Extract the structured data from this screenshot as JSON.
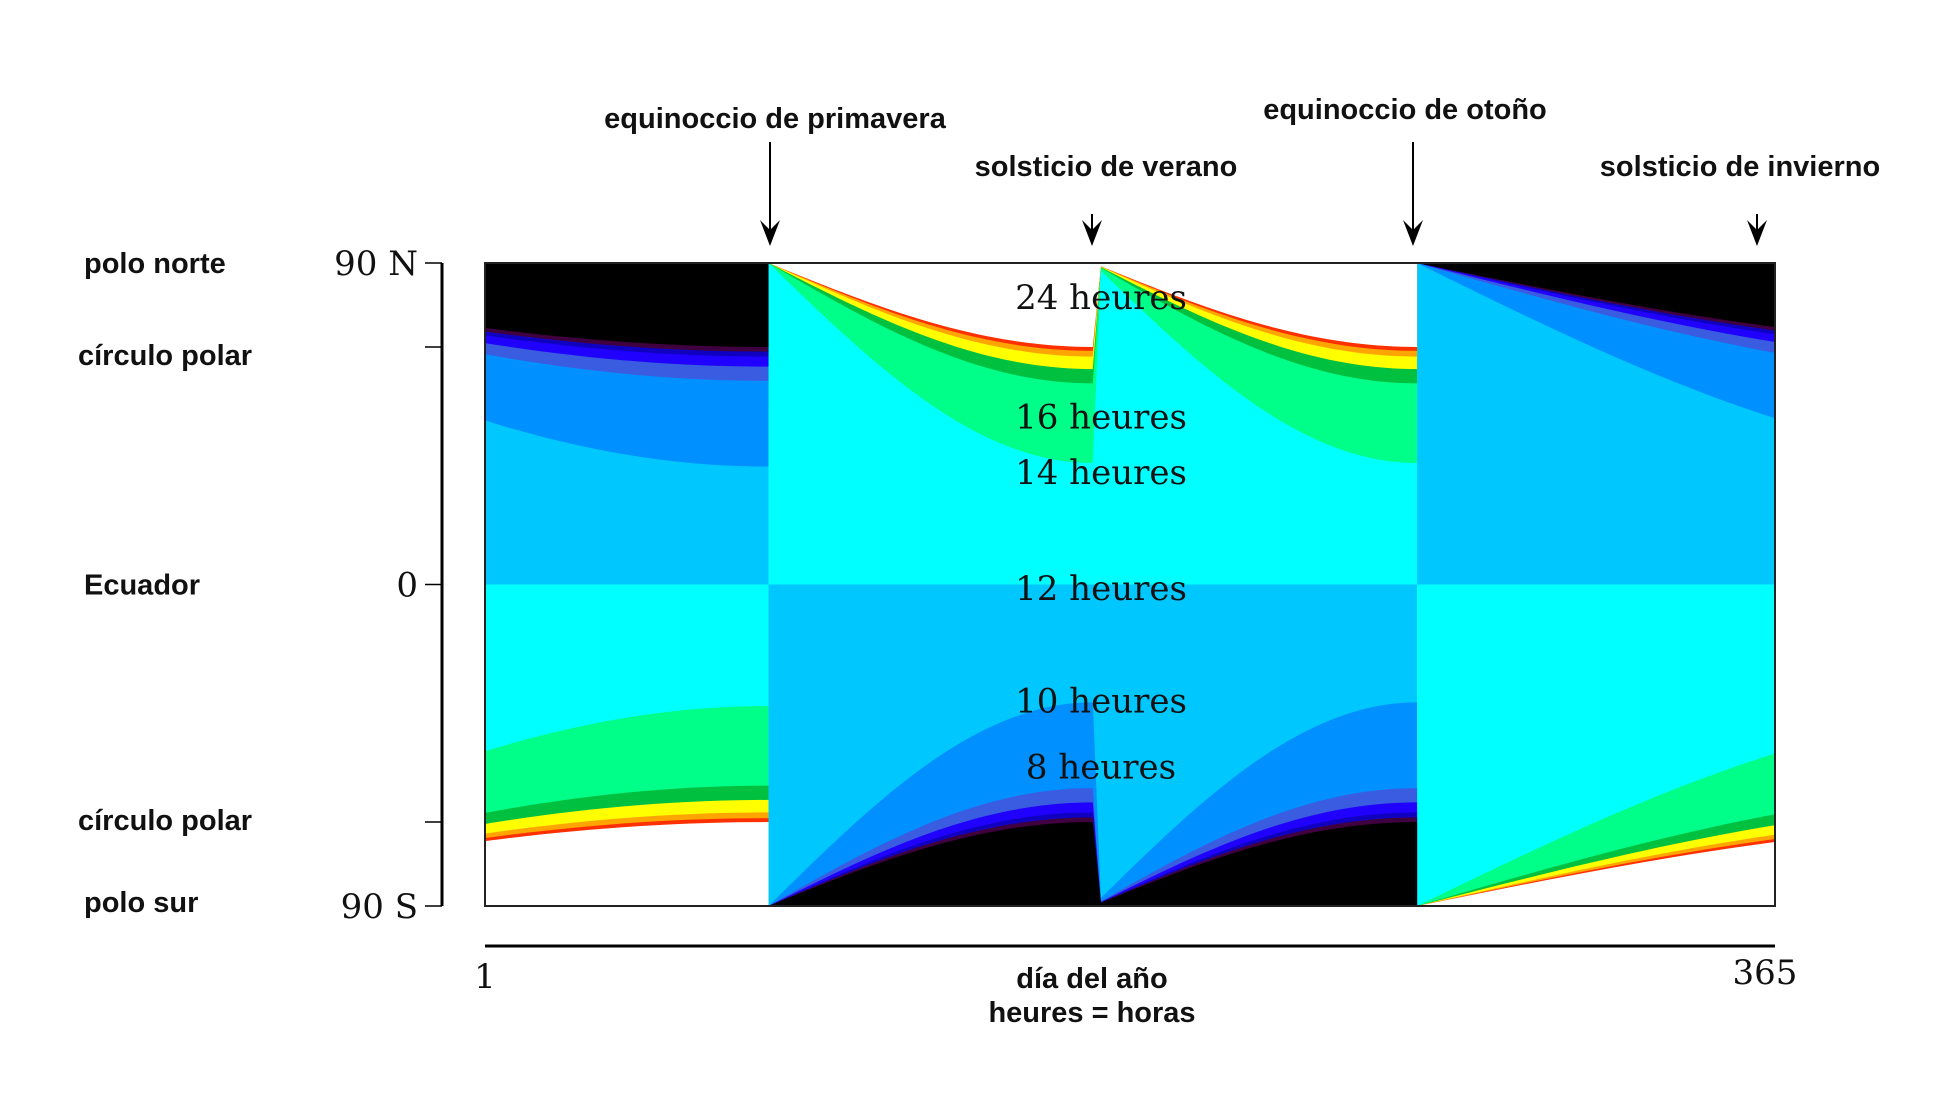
{
  "events": [
    {
      "id": "spring-equinox",
      "label": "equinoccio de primavera",
      "day": 81
    },
    {
      "id": "summer-solstice",
      "label": "solsticio de verano",
      "day": 172
    },
    {
      "id": "autumn-equinox",
      "label": "equinoccio de otoño",
      "day": 264
    },
    {
      "id": "winter-solstice",
      "label": "solsticio de invierno",
      "day": 356
    }
  ],
  "y_axis": {
    "ticks": [
      {
        "value": 90,
        "tick_label": "90 N",
        "name_label": "polo norte"
      },
      {
        "value": 66.5,
        "tick_label": "",
        "name_label": "círculo polar"
      },
      {
        "value": 0,
        "tick_label": "0",
        "name_label": "Ecuador"
      },
      {
        "value": -66.5,
        "tick_label": "",
        "name_label": "círculo polar"
      },
      {
        "value": -90,
        "tick_label": "90 S",
        "name_label": "polo sur"
      }
    ]
  },
  "x_axis": {
    "start_label": "1",
    "end_label": "365",
    "title": "día del año",
    "note": "heures = horas"
  },
  "band_labels": [
    {
      "text": "24 heures",
      "lat": 80.5
    },
    {
      "text": "16 heures",
      "lat": 47
    },
    {
      "text": "14 heures",
      "lat": 31.5
    },
    {
      "text": "12 heures",
      "lat": -1
    },
    {
      "text": "10 heures",
      "lat": -32.5
    },
    {
      "text": "8 heures",
      "lat": -51
    }
  ],
  "colors": {
    "h24": "#ffffff",
    "h0": "#000000",
    "h22": "#ff3000",
    "h20": "#ffa500",
    "h18": "#ffff00",
    "h17": "#00c040",
    "h16": "#00d060",
    "h14": "#00ff88",
    "h12a": "#00ffff",
    "h12b": "#00c8ff",
    "h10": "#0090ff",
    "h8": "#3a5ce0",
    "h6": "#2000ff",
    "h4": "#1000c0",
    "h2": "#400040"
  }
}
